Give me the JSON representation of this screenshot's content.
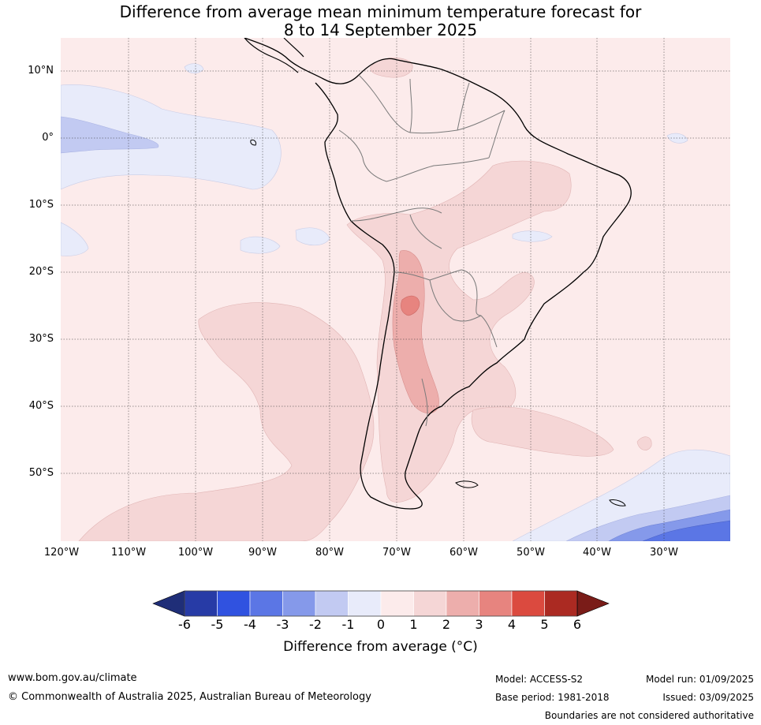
{
  "title_line1": "Difference from average mean minimum temperature forecast for",
  "title_line2": "8 to 14 September 2025",
  "lat_labels": [
    "10°N",
    "0°",
    "10°S",
    "20°S",
    "30°S",
    "40°S",
    "50°S"
  ],
  "lon_labels": [
    "120°W",
    "110°W",
    "100°W",
    "90°W",
    "80°W",
    "70°W",
    "60°W",
    "50°W",
    "40°W",
    "30°W"
  ],
  "colorbar": {
    "ticks": [
      "-6",
      "-5",
      "-4",
      "-3",
      "-2",
      "-1",
      "0",
      "1",
      "2",
      "3",
      "4",
      "5",
      "6"
    ],
    "colors": [
      "#273ba6",
      "#3052e0",
      "#5b76e5",
      "#8599ea",
      "#c2caf2",
      "#e8ebfa",
      "#fcebeb",
      "#f5d6d6",
      "#edaeac",
      "#e7847f",
      "#db4a3f",
      "#ab2a22"
    ],
    "under_color": "#1f2e78",
    "over_color": "#7a1c18",
    "label": "Difference from average (°C)"
  },
  "footer": {
    "website": "www.bom.gov.au/climate",
    "copyright": "© Commonwealth of Australia 2025, Australian Bureau of Meteorology",
    "model": "Model: ACCESS-S2",
    "base_period": "Base period: 1981-2018",
    "model_run": "Model run: 01/09/2025",
    "issued": "Issued: 03/09/2025",
    "disclaimer": "Boundaries are not considered authoritative"
  }
}
